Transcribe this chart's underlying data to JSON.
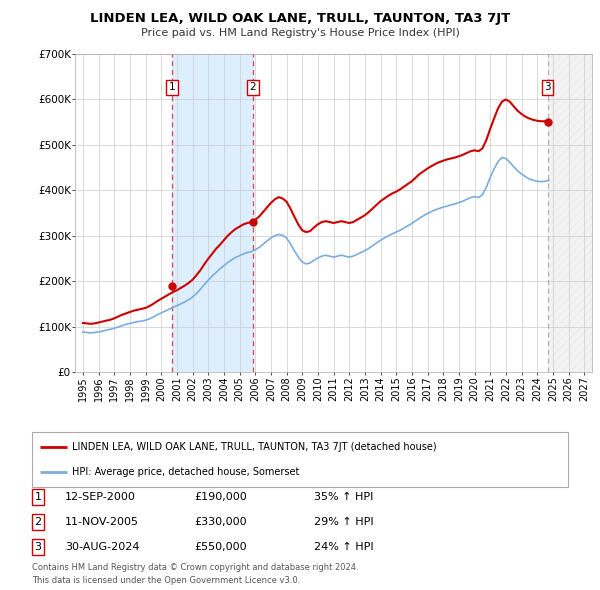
{
  "title": "LINDEN LEA, WILD OAK LANE, TRULL, TAUNTON, TA3 7JT",
  "subtitle": "Price paid vs. HM Land Registry's House Price Index (HPI)",
  "legend_label_red": "LINDEN LEA, WILD OAK LANE, TRULL, TAUNTON, TA3 7JT (detached house)",
  "legend_label_blue": "HPI: Average price, detached house, Somerset",
  "footer_line1": "Contains HM Land Registry data © Crown copyright and database right 2024.",
  "footer_line2": "This data is licensed under the Open Government Licence v3.0.",
  "sales": [
    {
      "num": 1,
      "date": "12-SEP-2000",
      "price": 190000,
      "pct": "35%",
      "year": 2000.71
    },
    {
      "num": 2,
      "date": "11-NOV-2005",
      "price": 330000,
      "pct": "29%",
      "year": 2005.86
    },
    {
      "num": 3,
      "date": "30-AUG-2024",
      "price": 550000,
      "pct": "24%",
      "year": 2024.66
    }
  ],
  "xlim": [
    1994.5,
    2027.5
  ],
  "ylim": [
    0,
    700000
  ],
  "yticks": [
    0,
    100000,
    200000,
    300000,
    400000,
    500000,
    600000,
    700000
  ],
  "ytick_labels": [
    "£0",
    "£100K",
    "£200K",
    "£300K",
    "£400K",
    "£500K",
    "£600K",
    "£700K"
  ],
  "xticks": [
    1995,
    1996,
    1997,
    1998,
    1999,
    2000,
    2001,
    2002,
    2003,
    2004,
    2005,
    2006,
    2007,
    2008,
    2009,
    2010,
    2011,
    2012,
    2013,
    2014,
    2015,
    2016,
    2017,
    2018,
    2019,
    2020,
    2021,
    2022,
    2023,
    2024,
    2025,
    2026,
    2027
  ],
  "red_color": "#cc0000",
  "blue_color": "#7aaddb",
  "shade_color": "#ddeeff",
  "vline_color": "#cc0000",
  "vline3_color": "#aaaaaa",
  "background_color": "#ffffff",
  "grid_color": "#cccccc",
  "hpi_red_data": {
    "years": [
      1995.0,
      1995.25,
      1995.5,
      1995.75,
      1996.0,
      1996.25,
      1996.5,
      1996.75,
      1997.0,
      1997.25,
      1997.5,
      1997.75,
      1998.0,
      1998.25,
      1998.5,
      1998.75,
      1999.0,
      1999.25,
      1999.5,
      1999.75,
      2000.0,
      2000.25,
      2000.5,
      2000.75,
      2001.0,
      2001.25,
      2001.5,
      2001.75,
      2002.0,
      2002.25,
      2002.5,
      2002.75,
      2003.0,
      2003.25,
      2003.5,
      2003.75,
      2004.0,
      2004.25,
      2004.5,
      2004.75,
      2005.0,
      2005.25,
      2005.5,
      2005.75,
      2006.0,
      2006.25,
      2006.5,
      2006.75,
      2007.0,
      2007.25,
      2007.5,
      2007.75,
      2008.0,
      2008.25,
      2008.5,
      2008.75,
      2009.0,
      2009.25,
      2009.5,
      2009.75,
      2010.0,
      2010.25,
      2010.5,
      2010.75,
      2011.0,
      2011.25,
      2011.5,
      2011.75,
      2012.0,
      2012.25,
      2012.5,
      2012.75,
      2013.0,
      2013.25,
      2013.5,
      2013.75,
      2014.0,
      2014.25,
      2014.5,
      2014.75,
      2015.0,
      2015.25,
      2015.5,
      2015.75,
      2016.0,
      2016.25,
      2016.5,
      2016.75,
      2017.0,
      2017.25,
      2017.5,
      2017.75,
      2018.0,
      2018.25,
      2018.5,
      2018.75,
      2019.0,
      2019.25,
      2019.5,
      2019.75,
      2020.0,
      2020.25,
      2020.5,
      2020.75,
      2021.0,
      2021.25,
      2021.5,
      2021.75,
      2022.0,
      2022.25,
      2022.5,
      2022.75,
      2023.0,
      2023.25,
      2023.5,
      2023.75,
      2024.0,
      2024.25,
      2024.5,
      2024.75
    ],
    "values": [
      108000,
      107000,
      106000,
      107000,
      109000,
      111000,
      113000,
      115000,
      118000,
      122000,
      126000,
      129000,
      132000,
      135000,
      137000,
      139000,
      141000,
      145000,
      150000,
      156000,
      161000,
      166000,
      171000,
      176000,
      180000,
      185000,
      190000,
      196000,
      203000,
      213000,
      224000,
      237000,
      249000,
      260000,
      271000,
      280000,
      290000,
      300000,
      308000,
      315000,
      320000,
      325000,
      328000,
      330000,
      335000,
      342000,
      352000,
      362000,
      372000,
      380000,
      385000,
      382000,
      375000,
      360000,
      342000,
      325000,
      312000,
      308000,
      310000,
      318000,
      325000,
      330000,
      332000,
      330000,
      328000,
      330000,
      332000,
      330000,
      328000,
      330000,
      335000,
      340000,
      345000,
      352000,
      360000,
      368000,
      376000,
      382000,
      388000,
      393000,
      397000,
      402000,
      408000,
      414000,
      420000,
      428000,
      436000,
      442000,
      448000,
      453000,
      458000,
      462000,
      465000,
      468000,
      470000,
      472000,
      475000,
      478000,
      482000,
      486000,
      488000,
      486000,
      492000,
      510000,
      535000,
      558000,
      580000,
      595000,
      600000,
      595000,
      585000,
      575000,
      568000,
      562000,
      558000,
      555000,
      553000,
      552000,
      552000,
      550000
    ]
  },
  "hpi_blue_data": {
    "years": [
      1995.0,
      1995.25,
      1995.5,
      1995.75,
      1996.0,
      1996.25,
      1996.5,
      1996.75,
      1997.0,
      1997.25,
      1997.5,
      1997.75,
      1998.0,
      1998.25,
      1998.5,
      1998.75,
      1999.0,
      1999.25,
      1999.5,
      1999.75,
      2000.0,
      2000.25,
      2000.5,
      2000.75,
      2001.0,
      2001.25,
      2001.5,
      2001.75,
      2002.0,
      2002.25,
      2002.5,
      2002.75,
      2003.0,
      2003.25,
      2003.5,
      2003.75,
      2004.0,
      2004.25,
      2004.5,
      2004.75,
      2005.0,
      2005.25,
      2005.5,
      2005.75,
      2006.0,
      2006.25,
      2006.5,
      2006.75,
      2007.0,
      2007.25,
      2007.5,
      2007.75,
      2008.0,
      2008.25,
      2008.5,
      2008.75,
      2009.0,
      2009.25,
      2009.5,
      2009.75,
      2010.0,
      2010.25,
      2010.5,
      2010.75,
      2011.0,
      2011.25,
      2011.5,
      2011.75,
      2012.0,
      2012.25,
      2012.5,
      2012.75,
      2013.0,
      2013.25,
      2013.5,
      2013.75,
      2014.0,
      2014.25,
      2014.5,
      2014.75,
      2015.0,
      2015.25,
      2015.5,
      2015.75,
      2016.0,
      2016.25,
      2016.5,
      2016.75,
      2017.0,
      2017.25,
      2017.5,
      2017.75,
      2018.0,
      2018.25,
      2018.5,
      2018.75,
      2019.0,
      2019.25,
      2019.5,
      2019.75,
      2020.0,
      2020.25,
      2020.5,
      2020.75,
      2021.0,
      2021.25,
      2021.5,
      2021.75,
      2022.0,
      2022.25,
      2022.5,
      2022.75,
      2023.0,
      2023.25,
      2023.5,
      2023.75,
      2024.0,
      2024.25,
      2024.5,
      2024.75
    ],
    "values": [
      88000,
      87000,
      86000,
      87000,
      88000,
      90000,
      92000,
      94000,
      96000,
      99000,
      102000,
      105000,
      107000,
      109000,
      111000,
      112000,
      114000,
      117000,
      121000,
      126000,
      130000,
      134000,
      138000,
      142000,
      146000,
      150000,
      154000,
      159000,
      165000,
      173000,
      182000,
      192000,
      202000,
      211000,
      219000,
      227000,
      234000,
      241000,
      247000,
      252000,
      256000,
      260000,
      263000,
      265000,
      269000,
      274000,
      281000,
      288000,
      295000,
      300000,
      303000,
      301000,
      295000,
      282000,
      267000,
      253000,
      242000,
      238000,
      240000,
      246000,
      251000,
      255000,
      257000,
      255000,
      253000,
      255000,
      257000,
      255000,
      253000,
      255000,
      259000,
      263000,
      267000,
      272000,
      278000,
      284000,
      290000,
      295000,
      300000,
      304000,
      308000,
      312000,
      317000,
      322000,
      327000,
      333000,
      339000,
      344000,
      349000,
      353000,
      357000,
      360000,
      363000,
      365000,
      368000,
      370000,
      373000,
      376000,
      380000,
      384000,
      386000,
      384000,
      390000,
      406000,
      428000,
      447000,
      463000,
      472000,
      470000,
      462000,
      452000,
      443000,
      436000,
      430000,
      425000,
      422000,
      420000,
      419000,
      420000,
      422000
    ]
  }
}
